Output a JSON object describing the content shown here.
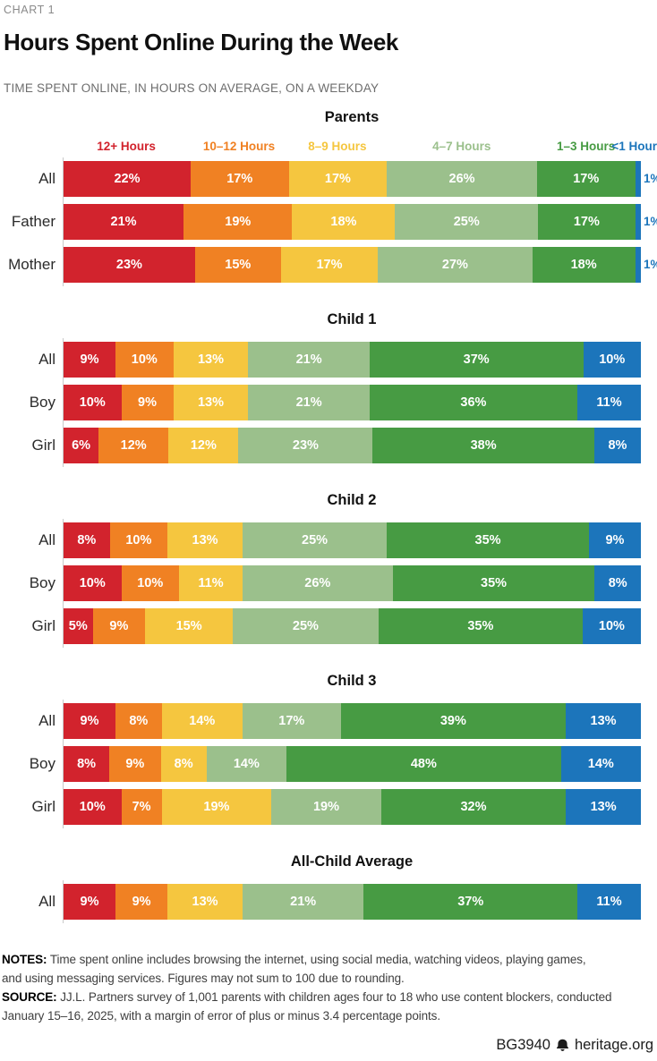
{
  "header": {
    "eyebrow": "CHART 1",
    "title": "Hours Spent Online During the Week",
    "subtitle": "TIME SPENT ONLINE, IN HOURS ON AVERAGE, ON A WEEKDAY"
  },
  "chart_data": {
    "type": "bar",
    "orientation": "horizontal",
    "stacked": true,
    "unit": "%",
    "axis_line_color": "#c9c9c9",
    "legend": [
      {
        "label": "12+ Hours",
        "color": "#D2232D"
      },
      {
        "label": "10–12 Hours",
        "color": "#F08123"
      },
      {
        "label": "8–9 Hours",
        "color": "#F5C63F"
      },
      {
        "label": "4–7 Hours",
        "color": "#9BC08C"
      },
      {
        "label": "1–3 Hours",
        "color": "#479B43"
      },
      {
        "label": "<1 Hour",
        "color": "#1C75BB"
      }
    ],
    "groups": [
      {
        "title": "Parents",
        "rows": [
          {
            "label": "All",
            "values": [
              22,
              17,
              17,
              26,
              17,
              1
            ]
          },
          {
            "label": "Father",
            "values": [
              21,
              19,
              18,
              25,
              17,
              1
            ]
          },
          {
            "label": "Mother",
            "values": [
              23,
              15,
              17,
              27,
              18,
              1
            ]
          }
        ]
      },
      {
        "title": "Child 1",
        "rows": [
          {
            "label": "All",
            "values": [
              9,
              10,
              13,
              21,
              37,
              10
            ]
          },
          {
            "label": "Boy",
            "values": [
              10,
              9,
              13,
              21,
              36,
              11
            ]
          },
          {
            "label": "Girl",
            "values": [
              6,
              12,
              12,
              23,
              38,
              8
            ]
          }
        ]
      },
      {
        "title": "Child 2",
        "rows": [
          {
            "label": "All",
            "values": [
              8,
              10,
              13,
              25,
              35,
              9
            ]
          },
          {
            "label": "Boy",
            "values": [
              10,
              10,
              11,
              26,
              35,
              8
            ]
          },
          {
            "label": "Girl",
            "values": [
              5,
              9,
              15,
              25,
              35,
              10
            ]
          }
        ]
      },
      {
        "title": "Child 3",
        "rows": [
          {
            "label": "All",
            "values": [
              9,
              8,
              14,
              17,
              39,
              13
            ]
          },
          {
            "label": "Boy",
            "values": [
              8,
              9,
              8,
              14,
              48,
              14
            ]
          },
          {
            "label": "Girl",
            "values": [
              10,
              7,
              19,
              19,
              32,
              13
            ]
          }
        ]
      },
      {
        "title": "All-Child Average",
        "rows": [
          {
            "label": "All",
            "values": [
              9,
              9,
              13,
              21,
              37,
              11
            ]
          }
        ]
      }
    ]
  },
  "footer": {
    "notes_label": "NOTES:",
    "notes_line1": "Time spent online includes browsing the internet, using social media, watching videos, playing games,",
    "notes_line2": "and using messaging services. Figures may not sum to 100 due to rounding.",
    "source_label": "SOURCE:",
    "source_line1": "JJ.L. Partners survey of 1,001 parents with children ages four to 18 who use content blockers, conducted",
    "source_line2": "January 15–16, 2025, with a margin of error of plus or minus 3.4 percentage points.",
    "brand_id": "BG3940",
    "brand_site": "heritage.org"
  }
}
